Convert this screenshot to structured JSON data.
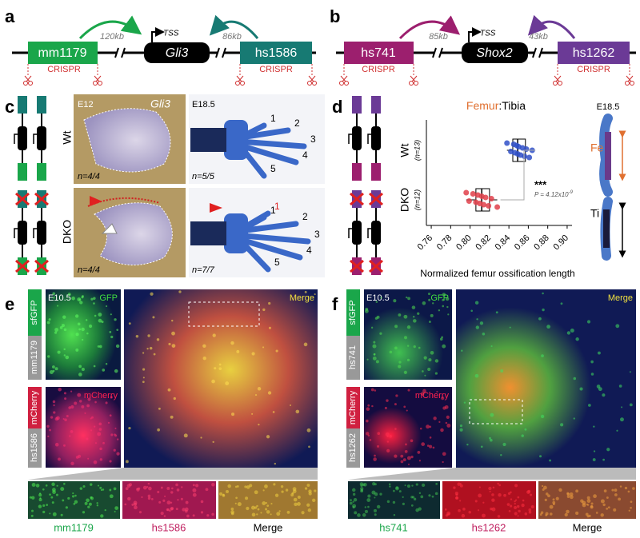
{
  "panels": {
    "a": {
      "label": "a",
      "enhancer_left": "mm1179",
      "gene": "Gli3",
      "enhancer_right": "hs1586",
      "tss": "TSS",
      "distance_left": "120kb",
      "distance_right": "86kb",
      "crispr_left": "CRISPR",
      "crispr_right": "CRISPR"
    },
    "b": {
      "label": "b",
      "enhancer_left": "hs741",
      "gene": "Shox2",
      "enhancer_right": "hs1262",
      "tss": "TSS",
      "distance_left": "85kb",
      "distance_right": "43kb",
      "crispr_left": "CRISPR",
      "crispr_right": "CRISPR"
    },
    "c": {
      "label": "c",
      "stage_left": "E12",
      "gene": "Gli3",
      "stage_right": "E18.5",
      "wt": "Wt",
      "dko": "DKO",
      "n_wt_left": "n=4/4",
      "n_wt_right": "n=5/5",
      "n_dko_left": "n=4/4",
      "n_dko_right": "n=7/7",
      "digits_wt": [
        "1",
        "2",
        "3",
        "4",
        "5"
      ],
      "digits_dko": [
        "1",
        "1",
        "2",
        "3",
        "4",
        "5"
      ]
    },
    "d": {
      "label": "d",
      "stage": "E18.5",
      "femur": "Fe",
      "tibia": "Ti"
    },
    "e": {
      "label": "e",
      "stage": "E10.5",
      "gfp": "GFP",
      "reporter_gfp": "sfGFP",
      "enhancer_gfp": "mm1179",
      "mcherry": "mCherry",
      "enhancer_mcherry": "hs1586",
      "merge": "Merge",
      "inset_labels": [
        "mm1179",
        "hs1586",
        "Merge"
      ]
    },
    "f": {
      "label": "f",
      "stage": "E10.5",
      "gfp": "GFP",
      "reporter_gfp": "sfGFP",
      "enhancer_gfp": "hs741",
      "mcherry": "mCherry",
      "enhancer_mcherry": "hs1262",
      "merge": "Merge",
      "inset_labels": [
        "hs741",
        "hs1262",
        "Merge"
      ]
    }
  },
  "chart_data": {
    "type": "box",
    "title_highlight": "Femur",
    "title_rest": ":Tibia",
    "xlabel": "Normalized femur ossification length",
    "categories": [
      "Wt",
      "DKO"
    ],
    "group_sizes": [
      "(n=13)",
      "(n=12)"
    ],
    "colors": [
      "#3050c8",
      "#e0404a"
    ],
    "points": [
      [
        0.838,
        0.842,
        0.845,
        0.846,
        0.848,
        0.849,
        0.85,
        0.852,
        0.854,
        0.856,
        0.858,
        0.861,
        0.864
      ],
      [
        0.796,
        0.799,
        0.803,
        0.806,
        0.808,
        0.81,
        0.812,
        0.814,
        0.816,
        0.819,
        0.822,
        0.828
      ]
    ],
    "boxes": [
      {
        "whisker_low": 0.838,
        "q1": 0.844,
        "median": 0.849,
        "q3": 0.857,
        "whisker_high": 0.864
      },
      {
        "whisker_low": 0.796,
        "q1": 0.806,
        "median": 0.812,
        "q3": 0.82,
        "whisker_high": 0.828
      }
    ],
    "significance": "***",
    "p_value": "P = 4.12x10",
    "p_exponent": "-9",
    "xlim": [
      0.755,
      0.905
    ],
    "xticks": [
      0.76,
      0.78,
      {
        "value": 0.8,
        "label": "0.80"
      },
      0.82,
      0.84,
      0.86,
      0.88,
      {
        "value": 0.9,
        "label": "0.90"
      }
    ]
  }
}
